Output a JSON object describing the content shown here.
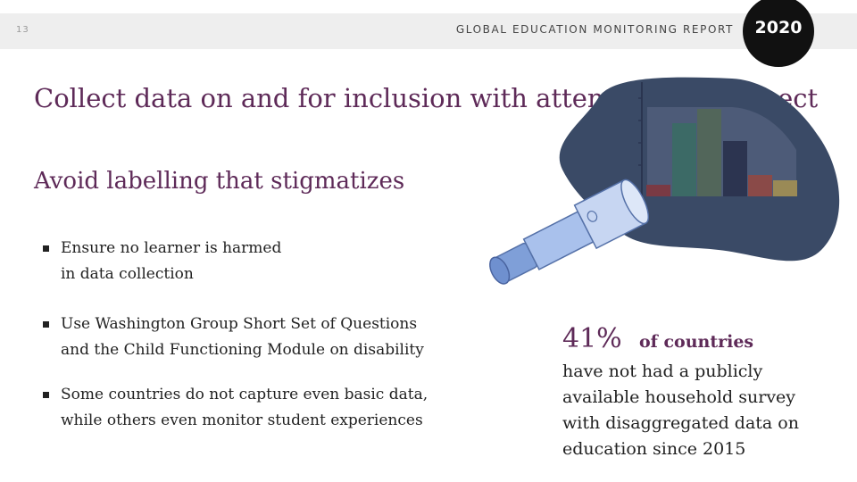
{
  "header": {
    "page_number": "13",
    "report_title": "GLOBAL EDUCATION MONITORING REPORT",
    "year": "2020"
  },
  "headline": "Collect data on and for inclusion with attention and respect",
  "subtitle": "Avoid labelling that stigmatizes",
  "bullets": [
    "Ensure no learner is harmed\nin data collection",
    "Use Washington Group Short Set of Questions\nand the Child Functioning Module on disability",
    "Some countries do not capture even basic data,\nwhile others even monitor student experiences"
  ],
  "stat": {
    "number": "41%",
    "unit": "of countries",
    "description": "have not had a publicly\navailable household survey\nwith disaggregated data on\neducation since 2015"
  },
  "colors": {
    "accent": "#5e2a58",
    "blob": "#3a4a66",
    "chart_panel": "#4d5b78",
    "telescope": "#8fb0e6"
  },
  "icons": {
    "illustration": "telescope-viewing-bar-chart"
  }
}
